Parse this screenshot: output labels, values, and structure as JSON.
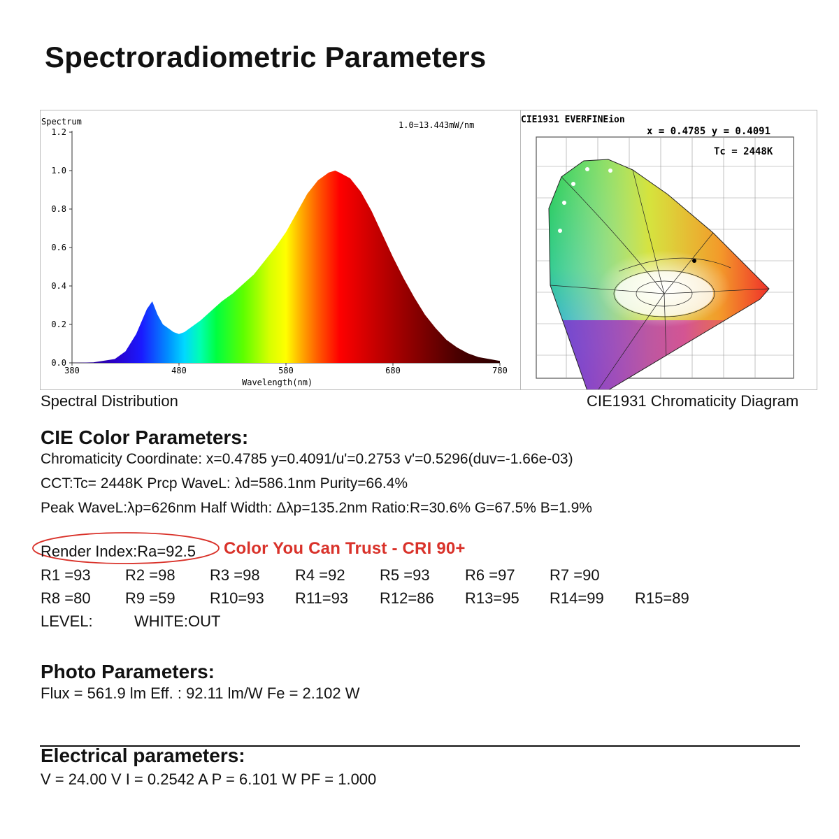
{
  "title": "Spectroradiometric Parameters",
  "spectrum": {
    "y_title": "Spectrum",
    "scale_note": "1.0=13.443mW/nm",
    "x_label": "Wavelength(nm)",
    "x_ticks": [
      "380",
      "480",
      "580",
      "680",
      "780"
    ],
    "y_ticks": [
      "0.0",
      "0.2",
      "0.4",
      "0.6",
      "0.8",
      "1.0",
      "1.2"
    ],
    "caption": "Spectral Distribution"
  },
  "chart_data": {
    "type": "area",
    "title": "",
    "xlabel": "Wavelength(nm)",
    "ylabel": "Spectrum",
    "xlim": [
      380,
      780
    ],
    "ylim": [
      0,
      1.2
    ],
    "x": [
      380,
      400,
      420,
      430,
      440,
      450,
      455,
      460,
      465,
      470,
      475,
      480,
      485,
      490,
      500,
      510,
      520,
      530,
      540,
      550,
      560,
      570,
      580,
      590,
      600,
      610,
      620,
      626,
      630,
      640,
      650,
      660,
      670,
      680,
      690,
      700,
      710,
      720,
      730,
      740,
      750,
      760,
      770,
      780
    ],
    "values": [
      0.0,
      0.003,
      0.02,
      0.06,
      0.15,
      0.28,
      0.32,
      0.25,
      0.2,
      0.18,
      0.16,
      0.15,
      0.16,
      0.18,
      0.22,
      0.27,
      0.32,
      0.36,
      0.41,
      0.46,
      0.53,
      0.6,
      0.68,
      0.78,
      0.88,
      0.95,
      0.99,
      1.0,
      0.99,
      0.96,
      0.89,
      0.79,
      0.67,
      0.55,
      0.44,
      0.34,
      0.25,
      0.18,
      0.12,
      0.08,
      0.05,
      0.03,
      0.02,
      0.01
    ]
  },
  "cie": {
    "header": "CIE1931 EVERFINEion",
    "coords": "x = 0.4785 y = 0.4091",
    "tc": "Tc = 2448K",
    "caption": "CIE1931 Chromaticity Diagram"
  },
  "cie_params": {
    "heading": "CIE Color Parameters:",
    "line1": "Chromaticity Coordinate: x=0.4785 y=0.4091/u'=0.2753 v'=0.5296(duv=-1.66e-03)",
    "line2": "CCT:Tc= 2448K Prcp WaveL: λd=586.1nm Purity=66.4%",
    "line3": "Peak WaveL:λp=626nm Half Width: Δλp=135.2nm Ratio:R=30.6% G=67.5% B=1.9%"
  },
  "render": {
    "ra": "Render Index:Ra=92.5",
    "tagline": "Color You Can Trust - CRI 90+",
    "row1": [
      "R1 =93",
      "R2 =98",
      "R3 =98",
      "R4 =92",
      "R5 =93",
      "R6 =97",
      "R7 =90"
    ],
    "row2": [
      "R8 =80",
      "R9 =59",
      "R10=93",
      "R11=93",
      "R12=86",
      "R13=95",
      "R14=99",
      "R15=89"
    ],
    "level_label": "LEVEL:",
    "level_value": "WHITE:OUT"
  },
  "photo": {
    "heading": "Photo Parameters:",
    "line": "Flux = 561.9 lm Eff. : 92.11 lm/W Fe = 2.102 W"
  },
  "electrical": {
    "heading": "Electrical parameters:",
    "line": "V = 24.00 V I = 0.2542 A P = 6.101 W PF = 1.000"
  }
}
